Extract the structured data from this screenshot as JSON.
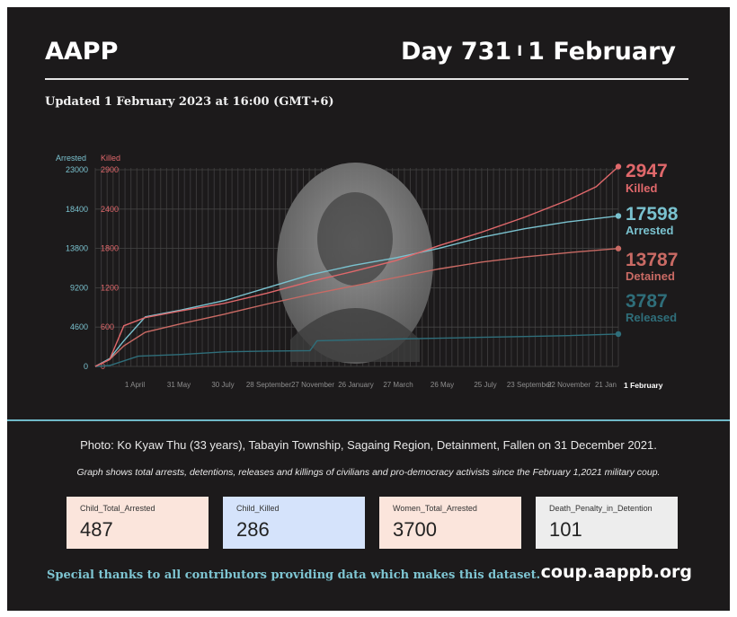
{
  "header": {
    "brand": "AAPP",
    "day": "Day 731",
    "separator": "I",
    "date": "1 February",
    "updated": "Updated 1 February 2023 at 16:00 (GMT+6)"
  },
  "colors": {
    "background": "#1c1a1b",
    "arrested": "#7ac2cf",
    "killed": "#e0686b",
    "detained": "#c96a64",
    "released": "#2f6e7a",
    "photo": "#777777"
  },
  "chart_data": {
    "type": "line",
    "left_axis_label": "Arrested",
    "right_axis_label": "Killed",
    "left_ticks": [
      "23000",
      "18400",
      "13800",
      "9200",
      "4600",
      "0"
    ],
    "right_ticks": [
      "2900",
      "2400",
      "1800",
      "1200",
      "600",
      "0"
    ],
    "x_ticks": [
      "1 April",
      "31 May",
      "30 July",
      "28 September",
      "27 November",
      "26 January",
      "27 March",
      "26 May",
      "25 July",
      "23 September",
      "22 November",
      "21 Jan"
    ],
    "x_end_label": "1 February",
    "ylim_left": [
      0,
      23000
    ],
    "ylim_right": [
      0,
      2900
    ],
    "series": [
      {
        "name": "Arrested",
        "axis": "left",
        "end_value": "17598",
        "color": "#7ac2cf",
        "points": [
          [
            0,
            0
          ],
          [
            20,
            900
          ],
          [
            40,
            3000
          ],
          [
            70,
            5800
          ],
          [
            120,
            6600
          ],
          [
            180,
            7700
          ],
          [
            240,
            9200
          ],
          [
            300,
            10700
          ],
          [
            360,
            11800
          ],
          [
            420,
            12700
          ],
          [
            480,
            13800
          ],
          [
            540,
            15100
          ],
          [
            600,
            16100
          ],
          [
            660,
            16900
          ],
          [
            731,
            17598
          ]
        ]
      },
      {
        "name": "Killed",
        "axis": "right",
        "end_value": "2947",
        "color": "#e0686b",
        "points": [
          [
            0,
            0
          ],
          [
            20,
            100
          ],
          [
            40,
            600
          ],
          [
            70,
            720
          ],
          [
            120,
            820
          ],
          [
            180,
            930
          ],
          [
            240,
            1080
          ],
          [
            300,
            1250
          ],
          [
            360,
            1400
          ],
          [
            420,
            1560
          ],
          [
            480,
            1780
          ],
          [
            540,
            1980
          ],
          [
            600,
            2200
          ],
          [
            660,
            2450
          ],
          [
            700,
            2650
          ],
          [
            731,
            2947
          ]
        ]
      },
      {
        "name": "Detained",
        "axis": "left",
        "end_value": "13787",
        "color": "#c96a64",
        "points": [
          [
            0,
            0
          ],
          [
            20,
            800
          ],
          [
            40,
            2400
          ],
          [
            70,
            4000
          ],
          [
            120,
            5000
          ],
          [
            180,
            6100
          ],
          [
            240,
            7300
          ],
          [
            300,
            8400
          ],
          [
            360,
            9400
          ],
          [
            420,
            10400
          ],
          [
            480,
            11400
          ],
          [
            540,
            12200
          ],
          [
            600,
            12800
          ],
          [
            660,
            13300
          ],
          [
            731,
            13787
          ]
        ]
      },
      {
        "name": "Released",
        "axis": "left",
        "end_value": "3787",
        "color": "#2f6e7a",
        "points": [
          [
            0,
            0
          ],
          [
            20,
            100
          ],
          [
            60,
            1200
          ],
          [
            120,
            1400
          ],
          [
            180,
            1700
          ],
          [
            240,
            1800
          ],
          [
            300,
            1850
          ],
          [
            310,
            3000
          ],
          [
            360,
            3100
          ],
          [
            420,
            3200
          ],
          [
            480,
            3300
          ],
          [
            540,
            3400
          ],
          [
            600,
            3500
          ],
          [
            660,
            3600
          ],
          [
            731,
            3787
          ]
        ]
      }
    ]
  },
  "caption": "Photo: Ko Kyaw Thu (33 years),  Tabayin Township, Sagaing Region, Detainment, Fallen on 31 December 2021.",
  "note": "Graph shows total arrests, detentions, releases and killings of civilians and pro-democracy activists since the February 1,2021 military coup.",
  "stats": [
    {
      "label": "Child_Total_Arrested",
      "value": "487",
      "bg": "#fbe5dc"
    },
    {
      "label": "Child_Killed",
      "value": "286",
      "bg": "#d5e3fb"
    },
    {
      "label": "Women_Total_Arrested",
      "value": "3700",
      "bg": "#fbe5dc"
    },
    {
      "label": "Death_Penalty_in_Detention",
      "value": "101",
      "bg": "#ededed"
    }
  ],
  "footer": {
    "thanks": "Special thanks to all contributors providing data which makes this dataset.",
    "site": "coup.aappb.org"
  }
}
